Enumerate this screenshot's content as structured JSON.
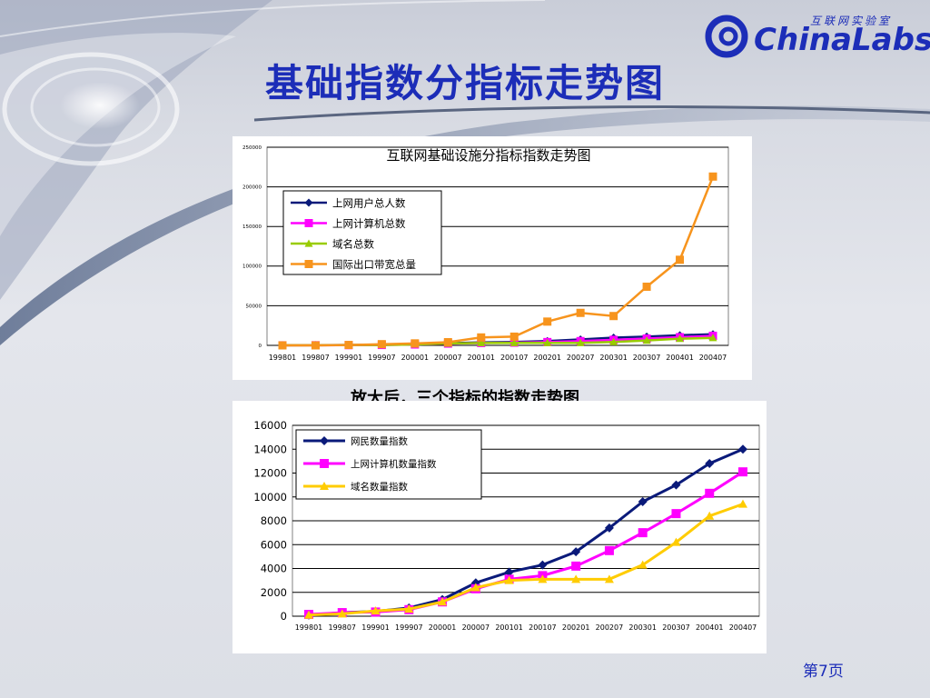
{
  "slide": {
    "title": "基础指数分指标走势图",
    "caption": "放大后，三个指标的指数走势图",
    "page_label": "第7页"
  },
  "logo": {
    "cn_text": "互联网实验室",
    "en_text": "ChinaLabs"
  },
  "colors": {
    "title": "#1c2db8",
    "navy": "#0a1a7a",
    "magenta": "#ff00ff",
    "lime": "#99cc00",
    "orange": "#f7941d",
    "gold": "#ffcc00"
  },
  "chart_data": [
    {
      "type": "line",
      "title": "互联网基础设施分指标指数走势图",
      "categories": [
        "199801",
        "199807",
        "199901",
        "199907",
        "200001",
        "200007",
        "200101",
        "200107",
        "200201",
        "200207",
        "200301",
        "200307",
        "200401",
        "200407"
      ],
      "ylim": [
        0,
        250000
      ],
      "yticks": [
        0,
        50000,
        100000,
        150000,
        200000,
        250000
      ],
      "grid": true,
      "legend_position": "top-left",
      "series": [
        {
          "name": "上网用户总人数",
          "color": "#0a1a7a",
          "marker": "diamond",
          "values": [
            100,
            300,
            400,
            700,
            1300,
            2700,
            3700,
            4300,
            5500,
            7500,
            9700,
            11000,
            12800,
            14000
          ]
        },
        {
          "name": "上网计算机总数",
          "color": "#ff00ff",
          "marker": "square",
          "values": [
            100,
            200,
            300,
            500,
            1100,
            2200,
            3000,
            3400,
            4200,
            5400,
            7000,
            8600,
            10300,
            12100
          ]
        },
        {
          "name": "域名总数",
          "color": "#99cc00",
          "marker": "triangle",
          "values": [
            100,
            200,
            400,
            500,
            1200,
            2400,
            3000,
            3100,
            3100,
            3100,
            4300,
            6200,
            8400,
            9400
          ]
        },
        {
          "name": "国际出口带宽总量",
          "color": "#f7941d",
          "marker": "square",
          "values": [
            0,
            0,
            500,
            1500,
            2500,
            4000,
            10000,
            11000,
            30000,
            41000,
            37000,
            74000,
            108000,
            213000
          ]
        }
      ]
    },
    {
      "type": "line",
      "title": "",
      "categories": [
        "199801",
        "199807",
        "199901",
        "199907",
        "200001",
        "200007",
        "200101",
        "200107",
        "200201",
        "200207",
        "200301",
        "200307",
        "200401",
        "200407"
      ],
      "ylim": [
        0,
        16000
      ],
      "yticks": [
        0,
        2000,
        4000,
        6000,
        8000,
        10000,
        12000,
        14000,
        16000
      ],
      "grid": true,
      "legend_position": "top-left",
      "series": [
        {
          "name": "网民数量指数",
          "color": "#0a1a7a",
          "marker": "diamond",
          "values": [
            100,
            300,
            400,
            700,
            1400,
            2800,
            3700,
            4300,
            5400,
            7400,
            9600,
            11000,
            12800,
            14000
          ]
        },
        {
          "name": "上网计算机数量指数",
          "color": "#ff00ff",
          "marker": "square",
          "values": [
            150,
            300,
            350,
            550,
            1200,
            2300,
            3100,
            3400,
            4200,
            5500,
            7000,
            8600,
            10300,
            12100
          ]
        },
        {
          "name": "域名数量指数",
          "color": "#ffcc00",
          "marker": "triangle",
          "values": [
            100,
            200,
            450,
            600,
            1200,
            2400,
            3000,
            3100,
            3100,
            3100,
            4300,
            6200,
            8400,
            9400
          ]
        }
      ]
    }
  ]
}
